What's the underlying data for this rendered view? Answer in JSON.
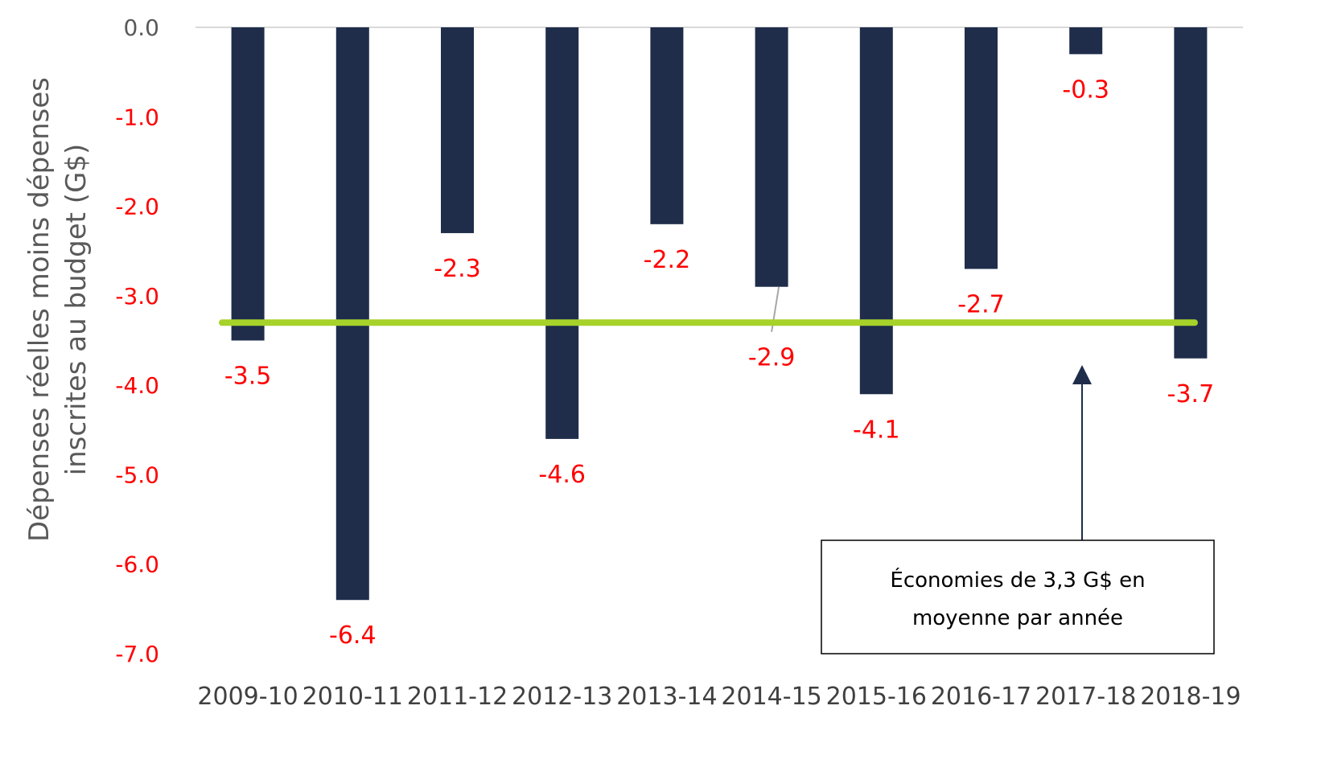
{
  "chart_data": {
    "type": "bar",
    "ylabel_lines": [
      "Dépenses réelles moins dépenses",
      "inscrites au budget (G$)"
    ],
    "categories": [
      "2009-10",
      "2010-11",
      "2011-12",
      "2012-13",
      "2013-14",
      "2014-15",
      "2015-16",
      "2016-17",
      "2017-18",
      "2018-19"
    ],
    "values": [
      -3.5,
      -6.4,
      -2.3,
      -4.6,
      -2.2,
      -2.9,
      -4.1,
      -2.7,
      -0.3,
      -3.7
    ],
    "data_labels": [
      "-3.5",
      "-6.4",
      "-2.3",
      "-4.6",
      "-2.2",
      "-2.9",
      "-4.1",
      "-2.7",
      "-0.3",
      "-3.7"
    ],
    "yticks": [
      0,
      -1,
      -2,
      -3,
      -4,
      -5,
      -6,
      -7
    ],
    "ytick_labels": [
      "0.0",
      "-1.0",
      "-2.0",
      "-3.0",
      "-4.0",
      "-5.0",
      "-6.0",
      "-7.0"
    ],
    "ylim": [
      -7,
      0
    ],
    "average_line": {
      "value": -3.3
    },
    "annotation": {
      "lines": [
        "Économies de 3,3 G$ en",
        "moyenne par année"
      ]
    },
    "colors": {
      "bar": "#1f2d4b",
      "average_line": "#a6d22a",
      "data_label": "#ff0000",
      "ytick_zero": "#595959",
      "ytick_negative": "#ff0000",
      "axis_line": "#d9d9d9"
    }
  }
}
